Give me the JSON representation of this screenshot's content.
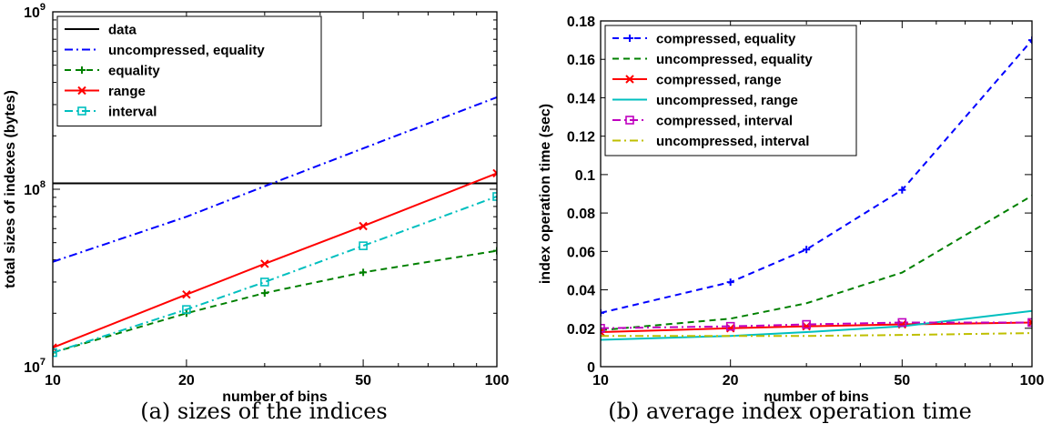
{
  "chart_data": [
    {
      "type": "line",
      "caption": "(a) sizes of the indices",
      "xlabel": "number of bins",
      "ylabel": "total sizes of indexes (bytes)",
      "xscale": "log",
      "yscale": "log",
      "xlim": [
        10,
        100
      ],
      "ylim": [
        10000000,
        1000000000
      ],
      "xticks": [
        10,
        20,
        50,
        100
      ],
      "xtick_labels": [
        "10",
        "20",
        "50",
        "100"
      ],
      "yticks": [
        10000000,
        100000000,
        1000000000
      ],
      "ytick_labels": [
        {
          "base": "10",
          "exp": "7"
        },
        {
          "base": "10",
          "exp": "8"
        },
        {
          "base": "10",
          "exp": "9"
        }
      ],
      "grid": false,
      "legend_position": "top-left",
      "series": [
        {
          "name": "data",
          "color": "#000000",
          "dash": "solid",
          "marker": "none",
          "x": [
            10,
            100
          ],
          "y": [
            108000000,
            108000000
          ]
        },
        {
          "name": "uncompressed, equality",
          "color": "#0000ff",
          "dash": "dashdot",
          "marker": "none",
          "x": [
            10,
            20,
            30,
            50,
            100
          ],
          "y": [
            39000000,
            70000000,
            104000000,
            170000000,
            330000000
          ]
        },
        {
          "name": "equality",
          "color": "#008000",
          "dash": "dashed",
          "marker": "plus",
          "x": [
            10,
            20,
            30,
            50,
            100
          ],
          "y": [
            12000000,
            20000000,
            26000000,
            34000000,
            45000000
          ]
        },
        {
          "name": "range",
          "color": "#ff0000",
          "dash": "solid",
          "marker": "x",
          "x": [
            10,
            20,
            30,
            50,
            100
          ],
          "y": [
            12800000,
            25500000,
            38000000,
            62000000,
            123000000
          ]
        },
        {
          "name": "interval",
          "color": "#00bfbf",
          "dash": "dashdot",
          "marker": "square",
          "x": [
            10,
            20,
            30,
            50,
            100
          ],
          "y": [
            12000000,
            21000000,
            30000000,
            48000000,
            91000000
          ]
        }
      ]
    },
    {
      "type": "line",
      "caption": "(b) average index operation time",
      "xlabel": "number of bins",
      "ylabel": "index operation time (sec)",
      "xscale": "log",
      "yscale": "linear",
      "xlim": [
        10,
        100
      ],
      "ylim": [
        0,
        0.18
      ],
      "xticks": [
        10,
        20,
        50,
        100
      ],
      "xtick_labels": [
        "10",
        "20",
        "50",
        "100"
      ],
      "yticks": [
        0,
        0.02,
        0.04,
        0.06,
        0.08,
        0.1,
        0.12,
        0.14,
        0.16,
        0.18
      ],
      "ytick_labels": [
        "0",
        "0.02",
        "0.04",
        "0.06",
        "0.08",
        "0.1",
        "0.12",
        "0.14",
        "0.16",
        "0.18"
      ],
      "grid": false,
      "legend_position": "top-left",
      "series": [
        {
          "name": "compressed, equality",
          "color": "#0000ff",
          "dash": "dashed",
          "marker": "plus",
          "x": [
            10,
            20,
            30,
            50,
            100
          ],
          "y": [
            0.028,
            0.044,
            0.061,
            0.092,
            0.17
          ]
        },
        {
          "name": "uncompressed, equality",
          "color": "#008000",
          "dash": "dashed",
          "marker": "none",
          "x": [
            10,
            20,
            30,
            50,
            100
          ],
          "y": [
            0.019,
            0.025,
            0.033,
            0.049,
            0.089
          ]
        },
        {
          "name": "compressed, range",
          "color": "#ff0000",
          "dash": "solid",
          "marker": "x",
          "x": [
            10,
            20,
            30,
            50,
            100
          ],
          "y": [
            0.018,
            0.02,
            0.021,
            0.022,
            0.023
          ]
        },
        {
          "name": "uncompressed, range",
          "color": "#00bfbf",
          "dash": "solid",
          "marker": "none",
          "x": [
            10,
            20,
            30,
            50,
            100
          ],
          "y": [
            0.014,
            0.016,
            0.018,
            0.021,
            0.029
          ]
        },
        {
          "name": "compressed, interval",
          "color": "#bf00bf",
          "dash": "dashdot",
          "marker": "square",
          "x": [
            10,
            20,
            30,
            50,
            100
          ],
          "y": [
            0.02,
            0.021,
            0.022,
            0.023,
            0.023
          ]
        },
        {
          "name": "uncompressed, interval",
          "color": "#bfbf00",
          "dash": "dashdot",
          "marker": "none",
          "x": [
            10,
            20,
            30,
            50,
            100
          ],
          "y": [
            0.016,
            0.016,
            0.016,
            0.0165,
            0.0175
          ]
        }
      ]
    }
  ]
}
